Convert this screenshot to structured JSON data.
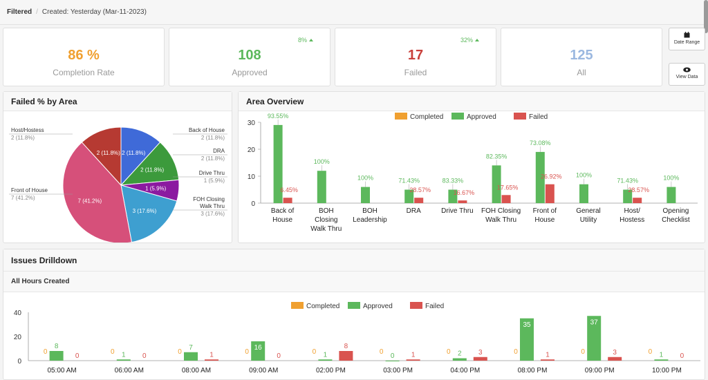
{
  "breadcrumb": {
    "filter": "Filtered",
    "created": "Created: Yesterday (Mar-11-2023)"
  },
  "kpis": [
    {
      "value": "86 %",
      "label": "Completion Rate",
      "color": "#f0a030",
      "delta": ""
    },
    {
      "value": "108",
      "label": "Approved",
      "color": "#5cb85c",
      "delta": "8%"
    },
    {
      "value": "17",
      "label": "Failed",
      "color": "#c9403b",
      "delta": "32%"
    },
    {
      "value": "125",
      "label": "All",
      "color": "#9bb8e0",
      "delta": ""
    }
  ],
  "buttons": {
    "date_range": "Date Range",
    "view_data": "View Data"
  },
  "pie_panel": {
    "title": "Failed % by Area"
  },
  "area_panel": {
    "title": "Area Overview"
  },
  "issues_panel": {
    "title": "Issues Drilldown",
    "subtitle": "All Hours Created"
  },
  "legend": {
    "completed": "Completed",
    "approved": "Approved",
    "failed": "Failed"
  },
  "colors": {
    "completed": "#f0a030",
    "approved": "#5cb85c",
    "failed": "#d9534f"
  },
  "chart_data": [
    {
      "type": "pie",
      "title": "Failed % by Area",
      "slices": [
        {
          "name": "Back of House",
          "value": 2,
          "pct": "11.8%",
          "label": "2 (11.8%)",
          "color": "#3f6ad8"
        },
        {
          "name": "DRA",
          "value": 2,
          "pct": "11.8%",
          "label": "2 (11.8%)",
          "color": "#3c9a3c"
        },
        {
          "name": "Drive Thru",
          "value": 1,
          "pct": "5.9%",
          "label": "1 (5.9%)",
          "color": "#8b1aa0"
        },
        {
          "name": "FOH Closing Walk Thru",
          "value": 3,
          "pct": "17.6%",
          "label": "3 (17.6%)",
          "color": "#3e9fd0"
        },
        {
          "name": "Front of House",
          "value": 7,
          "pct": "41.2%",
          "label": "7 (41.2%)",
          "color": "#d6507a"
        },
        {
          "name": "Host/Hostess",
          "value": 2,
          "pct": "11.8%",
          "label": "2 (11.8%)",
          "color": "#b63a32"
        }
      ],
      "outer_labels": [
        {
          "title": "Back of House",
          "sub": "2 (11.8%)"
        },
        {
          "title": "DRA",
          "sub": "2 (11.8%)"
        },
        {
          "title": "Drive Thru",
          "sub": "1 (5.9%)"
        },
        {
          "title": "FOH Closing Walk Thru",
          "sub": "3 (17.6%)"
        },
        {
          "title": "Front of House",
          "sub": "7 (41.2%)"
        },
        {
          "title": "Host/Hostess",
          "sub": "2 (11.8%)"
        }
      ],
      "inner_labels": [
        "2 (11.8%)",
        "2 (11.8%)",
        "1 (5.9%)",
        "3 (17.6%)",
        "7 (41.2%)",
        "2 (11.8%)"
      ]
    },
    {
      "type": "bar",
      "title": "Area Overview",
      "categories": [
        [
          "Back of",
          "House"
        ],
        [
          "BOH",
          "Closing",
          "Walk Thru"
        ],
        [
          "BOH",
          "Leadership"
        ],
        [
          "DRA"
        ],
        [
          "Drive Thru"
        ],
        [
          "FOH Closing",
          "Walk Thru"
        ],
        [
          "Front of",
          "House"
        ],
        [
          "General",
          "Utility"
        ],
        [
          "Host/",
          "Hostess"
        ],
        [
          "Opening",
          "Checklist"
        ]
      ],
      "series": [
        {
          "name": "Completed",
          "values": [
            0,
            0,
            0,
            0,
            0,
            0,
            0,
            0,
            0,
            0
          ]
        },
        {
          "name": "Approved",
          "values": [
            29,
            12,
            6,
            5,
            5,
            14,
            19,
            7,
            5,
            6
          ],
          "labels": [
            "93.55%",
            "100%",
            "100%",
            "71.43%",
            "83.33%",
            "82.35%",
            "73.08%",
            "100%",
            "71.43%",
            "100%"
          ]
        },
        {
          "name": "Failed",
          "values": [
            2,
            0,
            0,
            2,
            1,
            3,
            7,
            0,
            2,
            0
          ],
          "labels": [
            "6.45%",
            "",
            "",
            "28.57%",
            "16.67%",
            "17.65%",
            "26.92%",
            "",
            "28.57%",
            ""
          ]
        }
      ],
      "yticks": [
        0,
        10,
        20,
        30
      ],
      "ylim": [
        0,
        30
      ]
    },
    {
      "type": "bar",
      "title": "All Hours Created",
      "categories": [
        "05:00 AM",
        "06:00 AM",
        "08:00 AM",
        "09:00 AM",
        "02:00 PM",
        "03:00 PM",
        "04:00 PM",
        "08:00 PM",
        "09:00 PM",
        "10:00 PM"
      ],
      "series": [
        {
          "name": "Completed",
          "values": [
            0,
            0,
            0,
            0,
            0,
            0,
            0,
            0,
            0,
            0
          ]
        },
        {
          "name": "Approved",
          "values": [
            8,
            1,
            7,
            16,
            1,
            0,
            2,
            35,
            37,
            1
          ]
        },
        {
          "name": "Failed",
          "values": [
            0,
            0,
            1,
            0,
            8,
            1,
            3,
            1,
            3,
            0
          ]
        }
      ],
      "yticks": [
        0,
        20,
        40
      ],
      "ylim": [
        0,
        40
      ]
    }
  ]
}
